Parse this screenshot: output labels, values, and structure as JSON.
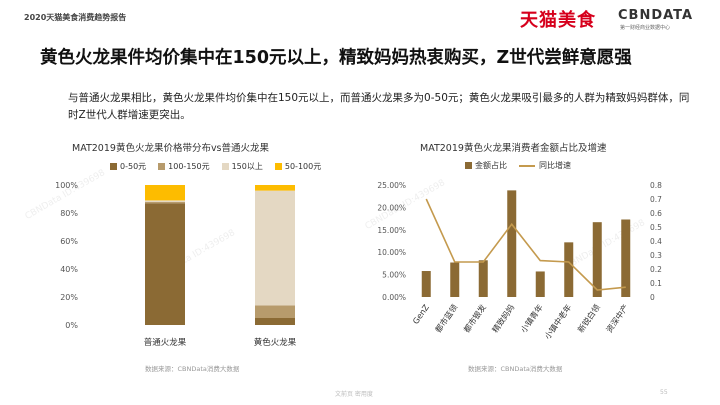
{
  "header": {
    "report_label": "2020天猫美食消费趋势报告",
    "brand_left": "天猫美食",
    "brand_right": "CBNDATA",
    "brand_right_sub": "第一财经商业数据中心"
  },
  "headline": "黄色火龙果件均价集中在150元以上，精致妈妈热衷购买，Z世代尝鲜意愿强",
  "summary": "与普通火龙果相比，黄色火龙果件均价集中在150元以上，而普通火龙果多为0-50元；黄色火龙果吸引最多的人群为精致妈妈群体，同时Z世代人群增速更突出。",
  "colors": {
    "brown": "#8b6a34",
    "tan": "#b79b6c",
    "cream": "#e4d8c3",
    "gold": "#fdbc00",
    "line": "#c49a4e"
  },
  "watermark": "CBNData ID:439698",
  "footer": {
    "left": "文前页  密用度",
    "page": "55"
  },
  "chart_data": [
    {
      "type": "bar",
      "stacked": true,
      "title": "MAT2019黄色火龙果价格带分布vs普通火龙果",
      "categories": [
        "普通火龙果",
        "黄色火龙果"
      ],
      "series": [
        {
          "name": "0-50元",
          "values": [
            87,
            5
          ],
          "color": "#8b6a34"
        },
        {
          "name": "100-150元",
          "values": [
            1,
            9
          ],
          "color": "#b79b6c"
        },
        {
          "name": "150以上",
          "values": [
            1,
            82
          ],
          "color": "#e4d8c3"
        },
        {
          "name": "50-100元",
          "values": [
            11,
            4
          ],
          "color": "#fdbc00"
        }
      ],
      "y_ticks": [
        "0%",
        "20%",
        "40%",
        "60%",
        "80%",
        "100%"
      ],
      "ylim": [
        0,
        100
      ],
      "source": "数据来源：CBNData消费大数据"
    },
    {
      "type": "bar",
      "title": "MAT2019黄色火龙果消费者金额占比及增速",
      "categories": [
        "GenZ",
        "都市蓝领",
        "都市银发",
        "精致妈妈",
        "小镇青年",
        "小镇中老年",
        "新锐白领",
        "资深中产"
      ],
      "series": [
        {
          "name": "金额占比",
          "kind": "bar",
          "axis": "left",
          "values": [
            5.8,
            7.7,
            8.2,
            23.8,
            5.7,
            12.2,
            16.7,
            17.3
          ],
          "color": "#8b6a34"
        },
        {
          "name": "同比增速",
          "kind": "line",
          "axis": "right",
          "values": [
            0.7,
            0.25,
            0.25,
            0.52,
            0.26,
            0.25,
            0.05,
            0.07
          ],
          "color": "#c49a4e"
        }
      ],
      "y_left_ticks": [
        "0.00%",
        "5.00%",
        "10.00%",
        "15.00%",
        "20.00%",
        "25.00%"
      ],
      "y_left_lim": [
        0,
        25
      ],
      "y_right_ticks": [
        "0",
        "0.1",
        "0.2",
        "0.3",
        "0.4",
        "0.5",
        "0.6",
        "0.7",
        "0.8"
      ],
      "y_right_lim": [
        0,
        0.8
      ],
      "source": "数据来源：CBNData消费大数据"
    }
  ]
}
